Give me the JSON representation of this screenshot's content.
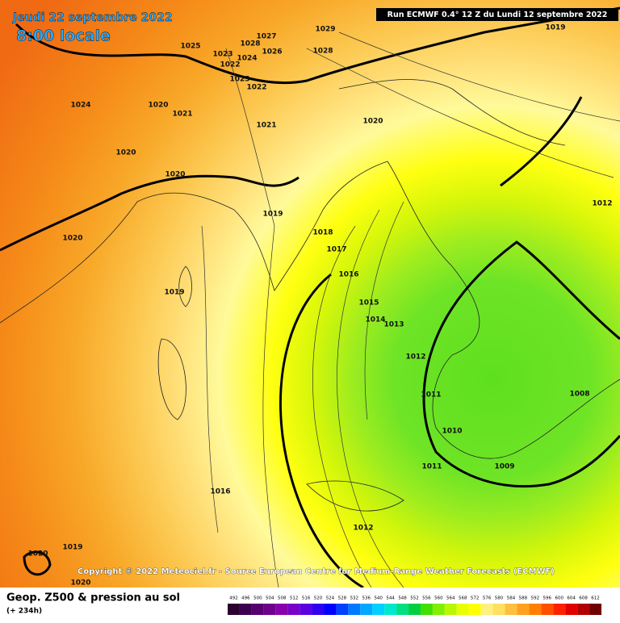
{
  "header": {
    "date": "Jeudi 22 septembre 2022",
    "time": "8:00 locale",
    "run": "Run ECMWF 0.4° 12 Z du Lundi 12 septembre 2022"
  },
  "copyright": "Copyright © 2022 Meteociel.fr - Source European Centre for Medium-Range Weather Forecasts (ECMWF)",
  "footer": {
    "title": "Geop. Z500 & pression au sol",
    "lead": "(+ 234h)"
  },
  "isobars": [
    1029,
    1019,
    1027,
    1025,
    1028,
    1026,
    1028,
    1023,
    1024,
    1022,
    1023,
    1022,
    1024,
    1020,
    1021,
    1021,
    1020,
    1020,
    1020,
    1012,
    1019,
    1020,
    1018,
    1017,
    1016,
    1019,
    1015,
    1014,
    1013,
    1012,
    1011,
    1008,
    1010,
    1011,
    1009,
    1016,
    1012,
    1019,
    1020,
    1020
  ],
  "legend": {
    "values": [
      492,
      496,
      500,
      504,
      508,
      512,
      516,
      520,
      524,
      528,
      532,
      536,
      540,
      544,
      548,
      552,
      556,
      560,
      564,
      568,
      572,
      576,
      580,
      584,
      588,
      592,
      596,
      600,
      604,
      608,
      612
    ],
    "colors": [
      "#2b0030",
      "#3c0050",
      "#55006e",
      "#6e008c",
      "#8800aa",
      "#7a00c8",
      "#5a00e0",
      "#3000f0",
      "#0000ff",
      "#0040ff",
      "#0078ff",
      "#00a8ff",
      "#00d0ff",
      "#00e8d0",
      "#00e080",
      "#00d040",
      "#40e000",
      "#80f000",
      "#b8f800",
      "#e8ff00",
      "#ffff00",
      "#fff080",
      "#ffe060",
      "#ffc040",
      "#ffa020",
      "#ff8000",
      "#ff5000",
      "#ff2000",
      "#e00000",
      "#b00000",
      "#700000"
    ]
  }
}
